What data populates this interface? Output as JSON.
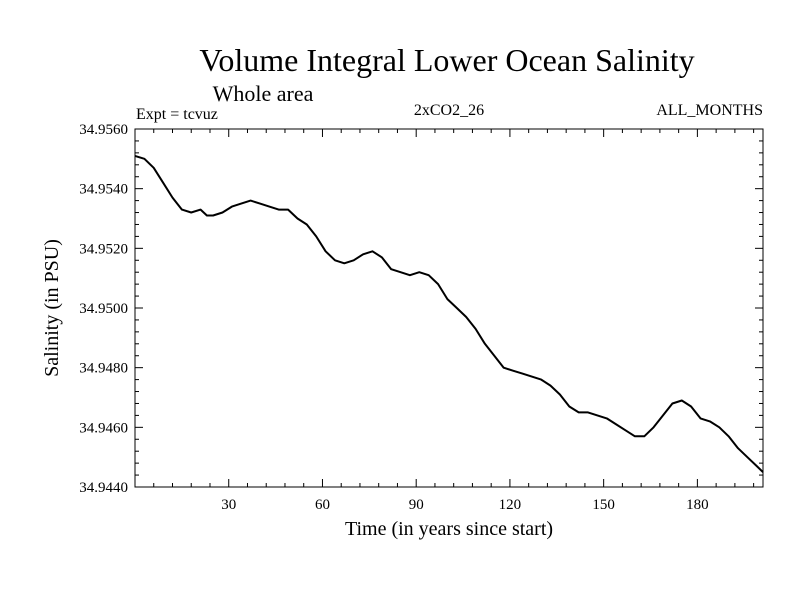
{
  "header": {
    "title": "Volume Integral Lower Ocean Salinity",
    "subtitle": "Whole area",
    "expt_label": "Expt = tcvuz",
    "run_label": "2xCO2_26",
    "months_label": "ALL_MONTHS"
  },
  "chart_data": {
    "type": "line",
    "title": "Volume Integral Lower Ocean Salinity",
    "subtitle": "Whole area",
    "xlabel": "Time (in years since start)",
    "ylabel": "Salinity (in PSU)",
    "xlim": [
      0,
      201
    ],
    "ylim": [
      34.944,
      34.956
    ],
    "x_ticks": [
      30,
      60,
      90,
      120,
      150,
      180
    ],
    "x_tick_labels": [
      "30",
      "60",
      "90",
      "120",
      "150",
      "180"
    ],
    "y_ticks": [
      34.944,
      34.946,
      34.948,
      34.95,
      34.952,
      34.954,
      34.956
    ],
    "y_tick_labels": [
      "34.9440",
      "34.9460",
      "34.9480",
      "34.9500",
      "34.9520",
      "34.9540",
      "34.9560"
    ],
    "grid": false,
    "series": [
      {
        "color": "#000000",
        "x": [
          0,
          3,
          6,
          9,
          12,
          15,
          18,
          21,
          23,
          25,
          28,
          31,
          34,
          37,
          40,
          43,
          46,
          49,
          52,
          55,
          58,
          61,
          64,
          67,
          70,
          73,
          76,
          79,
          82,
          85,
          88,
          91,
          94,
          97,
          100,
          103,
          106,
          109,
          112,
          115,
          118,
          121,
          124,
          127,
          130,
          133,
          136,
          139,
          142,
          145,
          148,
          151,
          154,
          157,
          160,
          163,
          166,
          169,
          172,
          175,
          178,
          181,
          184,
          187,
          190,
          193,
          196,
          199,
          201
        ],
        "values": [
          34.9551,
          34.955,
          34.9547,
          34.9542,
          34.9537,
          34.9533,
          34.9532,
          34.9533,
          34.9531,
          34.9531,
          34.9532,
          34.9534,
          34.9535,
          34.9536,
          34.9535,
          34.9534,
          34.9533,
          34.9533,
          34.953,
          34.9528,
          34.9524,
          34.9519,
          34.9516,
          34.9515,
          34.9516,
          34.9518,
          34.9519,
          34.9517,
          34.9513,
          34.9512,
          34.9511,
          34.9512,
          34.9511,
          34.9508,
          34.9503,
          34.95,
          34.9497,
          34.9493,
          34.9488,
          34.9484,
          34.948,
          34.9479,
          34.9478,
          34.9477,
          34.9476,
          34.9474,
          34.9471,
          34.9467,
          34.9465,
          34.9465,
          34.9464,
          34.9463,
          34.9461,
          34.9459,
          34.9457,
          34.9457,
          34.946,
          34.9464,
          34.9468,
          34.9469,
          34.9467,
          34.9463,
          34.9462,
          34.946,
          34.9457,
          34.9453,
          34.945,
          34.9447,
          34.9445
        ]
      }
    ]
  }
}
